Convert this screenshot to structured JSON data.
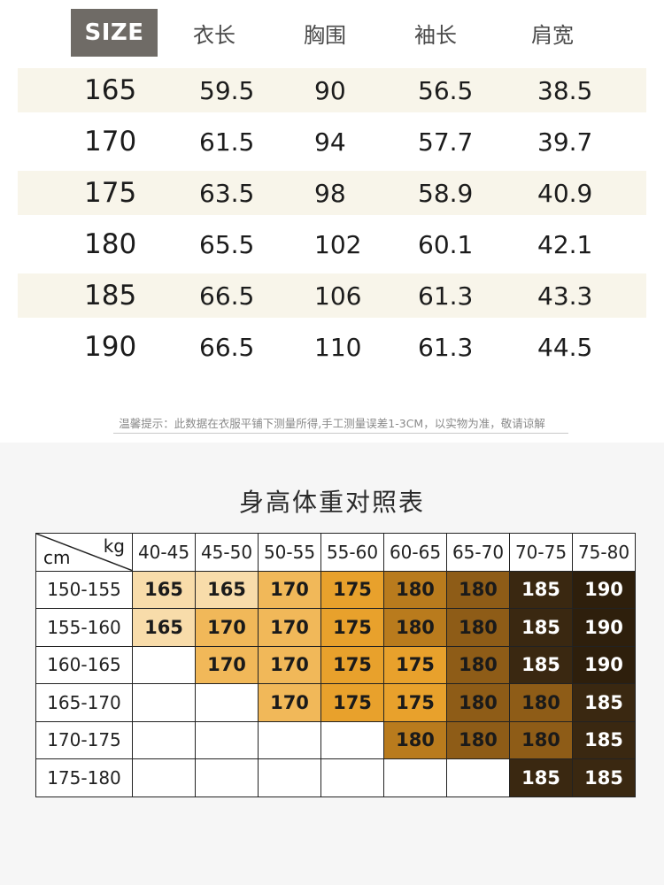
{
  "size_chart": {
    "badge": "SIZE",
    "columns": [
      "衣长",
      "胸围",
      "袖长",
      "肩宽"
    ],
    "rows": [
      [
        "165",
        "59.5",
        "90",
        "56.5",
        "38.5"
      ],
      [
        "170",
        "61.5",
        "94",
        "57.7",
        "39.7"
      ],
      [
        "175",
        "63.5",
        "98",
        "58.9",
        "40.9"
      ],
      [
        "180",
        "65.5",
        "102",
        "60.1",
        "42.1"
      ],
      [
        "185",
        "66.5",
        "106",
        "61.3",
        "43.3"
      ],
      [
        "190",
        "66.5",
        "110",
        "61.3",
        "44.5"
      ]
    ],
    "note": "温馨提示：此数据在衣服平铺下测量所得,手工测量误差1-3CM，以实物为准，敬请谅解"
  },
  "height_weight": {
    "title": "身高体重对照表",
    "corner_top": "kg",
    "corner_bottom": "cm",
    "weights": [
      "40-45",
      "45-50",
      "50-55",
      "55-60",
      "60-65",
      "65-70",
      "70-75",
      "75-80"
    ],
    "heights": [
      "150-155",
      "155-160",
      "160-165",
      "165-170",
      "170-175",
      "175-180"
    ],
    "cells": [
      [
        "165",
        "165",
        "170",
        "175",
        "180",
        "180",
        "185",
        "190"
      ],
      [
        "165",
        "170",
        "170",
        "175",
        "180",
        "180",
        "185",
        "190"
      ],
      [
        "",
        "170",
        "170",
        "175",
        "175",
        "180",
        "185",
        "190"
      ],
      [
        "",
        "",
        "170",
        "175",
        "175",
        "180",
        "180",
        "185"
      ],
      [
        "",
        "",
        "",
        "",
        "180",
        "180",
        "180",
        "185"
      ],
      [
        "",
        "",
        "",
        "",
        "",
        "",
        "185",
        "185"
      ]
    ],
    "colors": {
      "165": "#f8dcaa",
      "170": "#f1b859",
      "175": "#e8a12c",
      "180": "#b97b1d",
      "180_dark": "#8e5c17",
      "185": "#3a2811",
      "190": "#2e1f0c"
    }
  }
}
